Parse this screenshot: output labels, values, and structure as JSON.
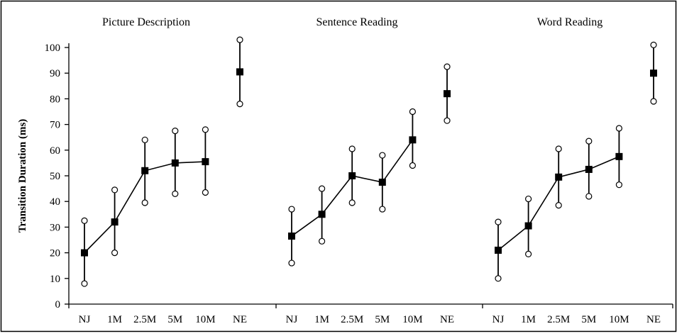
{
  "chart_data": {
    "type": "line",
    "ylabel": "Transition Duration (ms)",
    "ylim": [
      0,
      100
    ],
    "yticks": [
      0,
      10,
      20,
      30,
      40,
      50,
      60,
      70,
      80,
      90,
      100
    ],
    "categories": [
      "NJ",
      "1M",
      "2.5M",
      "5M",
      "10M",
      "NE"
    ],
    "connected_categories": [
      "NJ",
      "1M",
      "2.5M",
      "5M",
      "10M"
    ],
    "error_bars": true,
    "marker": "square",
    "error_cap_marker": "open-circle",
    "grid": false,
    "legend": "none",
    "panels": [
      {
        "title": "Picture Description",
        "mean": [
          20,
          32,
          52,
          55,
          55.5,
          90.5
        ],
        "upper": [
          32.5,
          44.5,
          64,
          67.5,
          68,
          103
        ],
        "lower": [
          8,
          20,
          39.5,
          43,
          43.5,
          78
        ]
      },
      {
        "title": "Sentence Reading",
        "mean": [
          26.5,
          35,
          50,
          47.5,
          64,
          82
        ],
        "upper": [
          37,
          45,
          60.5,
          58,
          75,
          92.5
        ],
        "lower": [
          16,
          24.5,
          39.5,
          37,
          54,
          71.5
        ]
      },
      {
        "title": "Word Reading",
        "mean": [
          21,
          30.5,
          49.5,
          52.5,
          57.5,
          90
        ],
        "upper": [
          32,
          41,
          60.5,
          63.5,
          68.5,
          101
        ],
        "lower": [
          10,
          19.5,
          38.5,
          42,
          46.5,
          79
        ]
      }
    ]
  },
  "colors": {
    "line": "#000000",
    "marker_fill": "#000000",
    "cap_fill": "#ffffff",
    "background": "#ffffff"
  }
}
